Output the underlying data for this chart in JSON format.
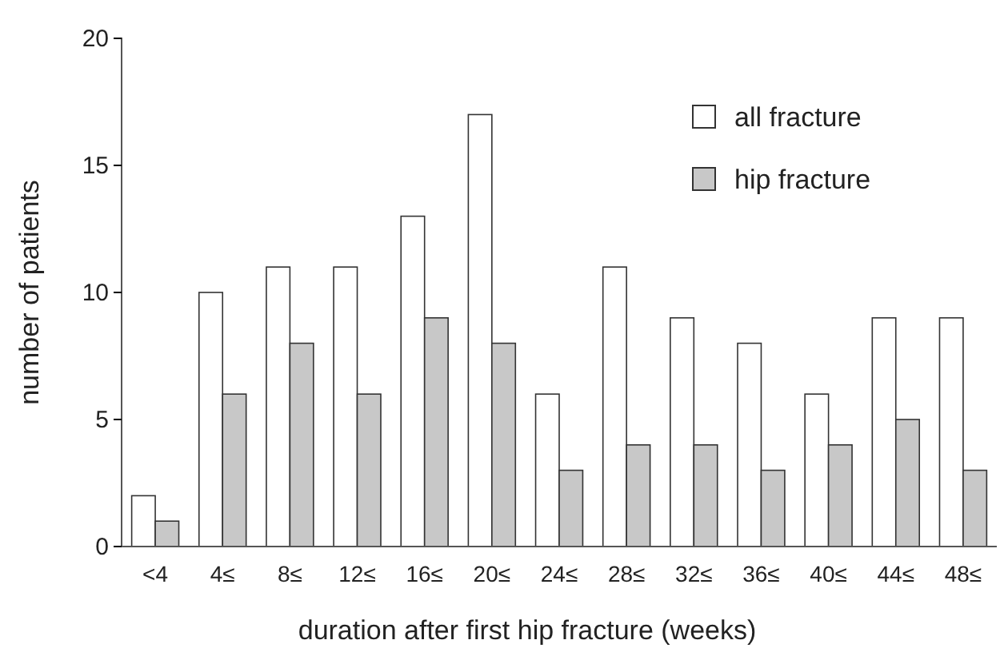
{
  "chart_data": {
    "type": "bar",
    "xlabel": "duration after first hip fracture (weeks)",
    "ylabel": "number of patients",
    "categories": [
      "<4",
      "4≤",
      "8≤",
      "12≤",
      "16≤",
      "20≤",
      "24≤",
      "28≤",
      "32≤",
      "36≤",
      "40≤",
      "44≤",
      "48≤"
    ],
    "series": [
      {
        "name": "all fracture",
        "color": "#ffffff",
        "values": [
          2,
          10,
          11,
          11,
          13,
          17,
          6,
          11,
          9,
          8,
          6,
          9,
          9
        ]
      },
      {
        "name": "hip fracture",
        "color": "#c8c8c8",
        "values": [
          1,
          6,
          8,
          6,
          9,
          8,
          3,
          4,
          4,
          3,
          4,
          5,
          3
        ]
      }
    ],
    "ylim": [
      0,
      20
    ],
    "yticks": [
      0,
      5,
      10,
      15,
      20
    ],
    "grid": false,
    "legend": "top right"
  }
}
